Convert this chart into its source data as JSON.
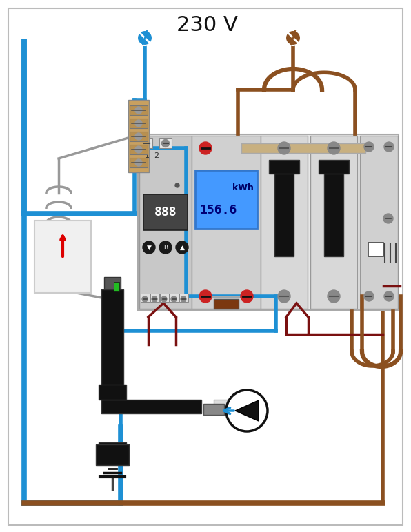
{
  "title": "230 V",
  "bg_color": "#ffffff",
  "blue": "#1e90d4",
  "brown": "#8B5020",
  "dark_red": "#7a1010",
  "gray": "#aaaaaa",
  "black": "#111111",
  "device_gray": "#cccccc",
  "device_gray2": "#d8d8d8",
  "red_screw": "#cc2222",
  "lcd_blue": "#4499ff",
  "beige": "#c8a870",
  "tan_bus": "#c8b080",
  "green": "#22aa22",
  "wire_lw": 4,
  "wire_lw_thin": 2.5
}
